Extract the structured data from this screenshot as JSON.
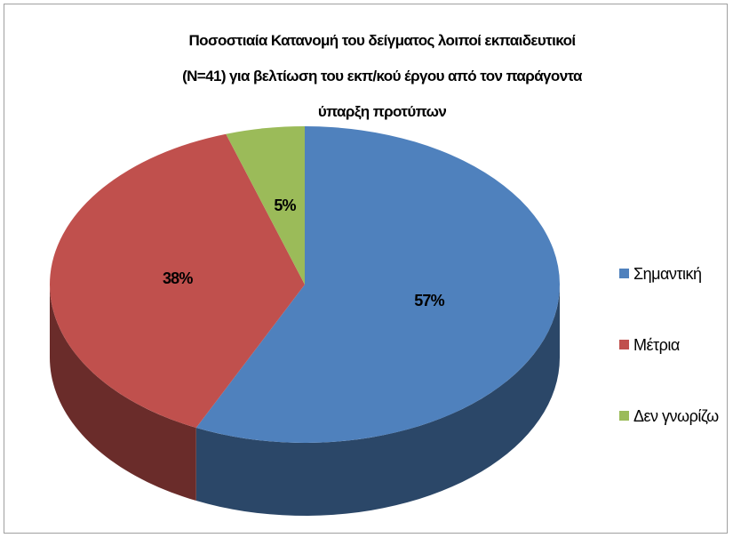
{
  "chart_data": {
    "type": "pie3d",
    "title": [
      "Ποσοστιαία Κατανομή του  δείγματος λοιποί εκπαιδευτικοί",
      "(Ν=41)  για βελτίωση του εκπ/κού έργου από τον παράγοντα",
      "ύπαρξη προτύπων"
    ],
    "categories": [
      "Σημαντική",
      "Μέτρια",
      "Δεν γνωρίζω"
    ],
    "values": [
      57,
      38,
      5
    ],
    "value_labels": [
      "57%",
      "38%",
      "5%"
    ],
    "colors": [
      "#4f81bd",
      "#c0504d",
      "#9bbb59"
    ],
    "legend": "right"
  }
}
